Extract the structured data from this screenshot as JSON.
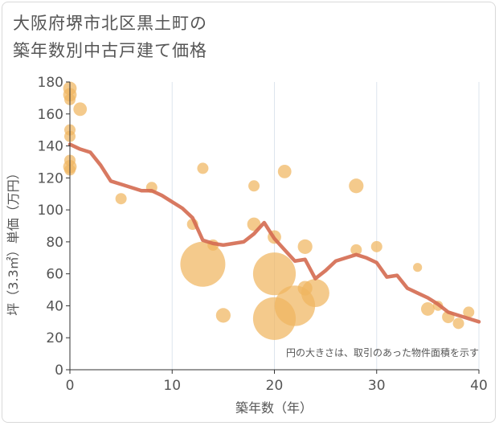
{
  "title_line1": "大阪府堺市北区黒土町の",
  "title_line2": "築年数別中古戸建て価格",
  "chart_data": {
    "type": "scatter",
    "title": "大阪府堺市北区黒土町の築年数別中古戸建て価格",
    "xlabel": "築年数（年）",
    "ylabel": "坪（3.3㎡）単価（万円）",
    "xlim": [
      0,
      40
    ],
    "ylim": [
      0,
      180
    ],
    "xticks": [
      0,
      10,
      20,
      30,
      40
    ],
    "yticks": [
      0,
      20,
      40,
      60,
      80,
      100,
      120,
      140,
      160,
      180
    ],
    "grid": "vertical",
    "note": "円の大きさは、取引のあった物件面積を示す",
    "colors": {
      "bubble": "#f0b560",
      "line": "#d46a50",
      "grid": "#dde5ee",
      "axis": "#333333"
    },
    "bubbles": [
      {
        "x": 0,
        "y": 176,
        "size": 1.2
      },
      {
        "x": 0,
        "y": 172,
        "size": 1.2
      },
      {
        "x": 0,
        "y": 169,
        "size": 1.0
      },
      {
        "x": 1,
        "y": 163,
        "size": 1.2
      },
      {
        "x": 0,
        "y": 150,
        "size": 1.0
      },
      {
        "x": 0,
        "y": 146,
        "size": 1.0
      },
      {
        "x": 0,
        "y": 131,
        "size": 1.0
      },
      {
        "x": 0,
        "y": 127,
        "size": 1.2
      },
      {
        "x": 0,
        "y": 125,
        "size": 1.0
      },
      {
        "x": 5,
        "y": 107,
        "size": 1.0
      },
      {
        "x": 8,
        "y": 114,
        "size": 1.0
      },
      {
        "x": 12,
        "y": 91,
        "size": 1.0
      },
      {
        "x": 13,
        "y": 126,
        "size": 1.0
      },
      {
        "x": 13,
        "y": 66,
        "size": 4.0
      },
      {
        "x": 14,
        "y": 78,
        "size": 1.0
      },
      {
        "x": 15,
        "y": 34,
        "size": 1.3
      },
      {
        "x": 18,
        "y": 115,
        "size": 1.0
      },
      {
        "x": 18,
        "y": 91,
        "size": 1.2
      },
      {
        "x": 20,
        "y": 83,
        "size": 1.2
      },
      {
        "x": 20,
        "y": 60,
        "size": 3.8
      },
      {
        "x": 20,
        "y": 32,
        "size": 3.8
      },
      {
        "x": 21,
        "y": 124,
        "size": 1.2
      },
      {
        "x": 22,
        "y": 40,
        "size": 3.6
      },
      {
        "x": 23,
        "y": 77,
        "size": 1.3
      },
      {
        "x": 23,
        "y": 51,
        "size": 1.3
      },
      {
        "x": 24,
        "y": 48,
        "size": 2.5
      },
      {
        "x": 28,
        "y": 115,
        "size": 1.3
      },
      {
        "x": 28,
        "y": 75,
        "size": 1.0
      },
      {
        "x": 30,
        "y": 77,
        "size": 1.0
      },
      {
        "x": 34,
        "y": 64,
        "size": 0.8
      },
      {
        "x": 35,
        "y": 38,
        "size": 1.2
      },
      {
        "x": 36,
        "y": 40,
        "size": 0.9
      },
      {
        "x": 37,
        "y": 33,
        "size": 1.1
      },
      {
        "x": 38,
        "y": 29,
        "size": 1.0
      },
      {
        "x": 39,
        "y": 36,
        "size": 1.0
      }
    ],
    "trend": {
      "x": [
        0,
        1,
        2,
        3,
        4,
        5,
        6,
        7,
        8,
        9,
        10,
        11,
        12,
        13,
        14,
        15,
        16,
        17,
        18,
        19,
        20,
        21,
        22,
        23,
        24,
        25,
        26,
        27,
        28,
        29,
        30,
        31,
        32,
        33,
        34,
        35,
        36,
        37,
        38,
        39,
        40
      ],
      "y": [
        141,
        138,
        136,
        128,
        118,
        116,
        114,
        112,
        112,
        109,
        105,
        101,
        95,
        81,
        79,
        78,
        79,
        80,
        85,
        92,
        82,
        75,
        68,
        69,
        57,
        62,
        68,
        70,
        72,
        70,
        67,
        58,
        59,
        51,
        48,
        45,
        41,
        36,
        34,
        32,
        30
      ]
    }
  }
}
